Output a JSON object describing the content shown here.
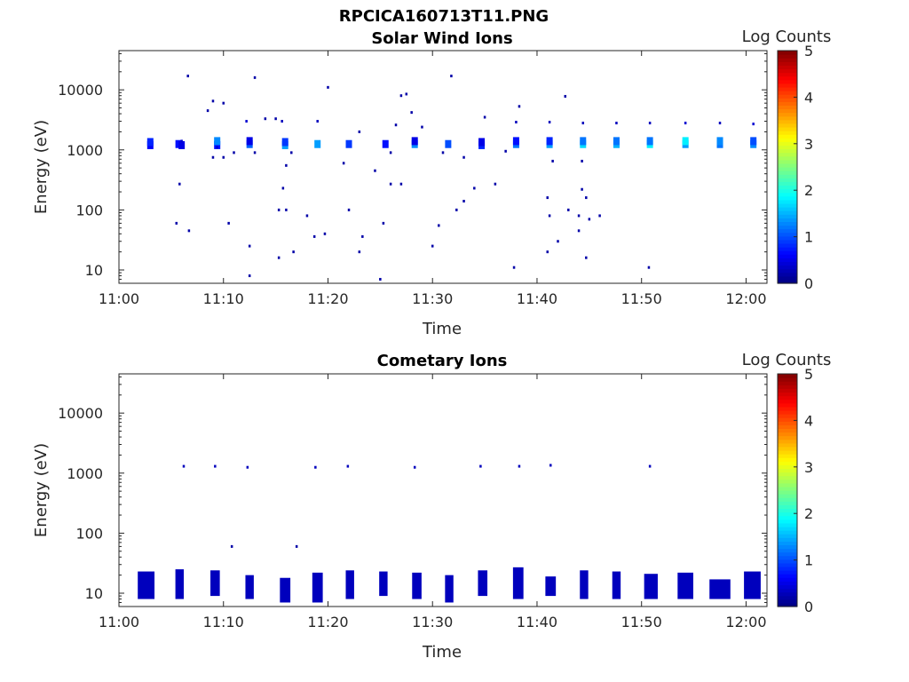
{
  "figure_title": "RPCICA160713T11.PNG",
  "chart_data": [
    {
      "type": "heatmap",
      "title": "Solar Wind Ions",
      "xlabel": "Time",
      "ylabel": "Energy (eV)",
      "yscale": "log",
      "ylim": [
        6,
        45000
      ],
      "xlim": [
        "11:00",
        "12:02"
      ],
      "x_ticks": [
        "11:00",
        "11:10",
        "11:20",
        "11:30",
        "11:40",
        "11:50",
        "12:00"
      ],
      "y_ticks": [
        "10",
        "100",
        "1000",
        "10000"
      ],
      "colorbar": {
        "label": "Log Counts",
        "range": [
          0,
          5
        ],
        "ticks": [
          "0",
          "1",
          "2",
          "3",
          "4",
          "5"
        ],
        "colormap": "jet"
      },
      "points": [
        {
          "t": "11:03",
          "e": 1200,
          "v": 0.6
        },
        {
          "t": "11:03",
          "e": 1350,
          "v": 0.8
        },
        {
          "t": "11:05.7",
          "e": 1250,
          "v": 0.7
        },
        {
          "t": "11:06",
          "e": 1200,
          "v": 0.5
        },
        {
          "t": "11:06",
          "e": 1400,
          "v": 0.4
        },
        {
          "t": "11:09.4",
          "e": 1200,
          "v": 0.7
        },
        {
          "t": "11:09.4",
          "e": 1400,
          "v": 1.3
        },
        {
          "t": "11:09.4",
          "e": 1100,
          "v": 0.4
        },
        {
          "t": "11:12.5",
          "e": 1250,
          "v": 1.1
        },
        {
          "t": "11:12.5",
          "e": 1400,
          "v": 0.5
        },
        {
          "t": "11:12.2",
          "e": 3000,
          "v": 0.4
        },
        {
          "t": "11:15.9",
          "e": 1200,
          "v": 1.4
        },
        {
          "t": "11:15.9",
          "e": 1350,
          "v": 0.9
        },
        {
          "t": "11:15.6",
          "e": 3000,
          "v": 0.3
        },
        {
          "t": "11:19",
          "e": 1250,
          "v": 1.4
        },
        {
          "t": "11:19",
          "e": 3000,
          "v": 0.3
        },
        {
          "t": "11:22",
          "e": 1250,
          "v": 0.9
        },
        {
          "t": "11:25.5",
          "e": 1250,
          "v": 0.7
        },
        {
          "t": "11:28.3",
          "e": 1250,
          "v": 1.3
        },
        {
          "t": "11:28.3",
          "e": 1400,
          "v": 0.5
        },
        {
          "t": "11:31.5",
          "e": 1250,
          "v": 1.0
        },
        {
          "t": "11:34.7",
          "e": 1200,
          "v": 0.8
        },
        {
          "t": "11:34.7",
          "e": 1350,
          "v": 0.5
        },
        {
          "t": "11:38",
          "e": 1250,
          "v": 1.2
        },
        {
          "t": "11:38",
          "e": 1400,
          "v": 0.7
        },
        {
          "t": "11:38",
          "e": 2900,
          "v": 0.3
        },
        {
          "t": "11:41.2",
          "e": 1250,
          "v": 1.4
        },
        {
          "t": "11:41.2",
          "e": 1400,
          "v": 0.8
        },
        {
          "t": "11:41.2",
          "e": 2900,
          "v": 0.3
        },
        {
          "t": "11:44.4",
          "e": 1250,
          "v": 1.7
        },
        {
          "t": "11:44.4",
          "e": 1400,
          "v": 1.2
        },
        {
          "t": "11:44.4",
          "e": 2800,
          "v": 0.3
        },
        {
          "t": "11:47.6",
          "e": 1250,
          "v": 1.5
        },
        {
          "t": "11:47.6",
          "e": 1400,
          "v": 1.2
        },
        {
          "t": "11:47.6",
          "e": 2800,
          "v": 0.3
        },
        {
          "t": "11:50.8",
          "e": 1250,
          "v": 1.8
        },
        {
          "t": "11:50.8",
          "e": 1400,
          "v": 1.2
        },
        {
          "t": "11:50.8",
          "e": 2800,
          "v": 0.3
        },
        {
          "t": "11:54.2",
          "e": 1250,
          "v": 1.4
        },
        {
          "t": "11:54.2",
          "e": 1400,
          "v": 1.8
        },
        {
          "t": "11:54.2",
          "e": 2800,
          "v": 0.4
        },
        {
          "t": "11:57.5",
          "e": 1250,
          "v": 1.2
        },
        {
          "t": "11:57.5",
          "e": 1400,
          "v": 1.3
        },
        {
          "t": "11:57.5",
          "e": 2800,
          "v": 0.3
        },
        {
          "t": "12:00.7",
          "e": 1250,
          "v": 1.3
        },
        {
          "t": "12:00.7",
          "e": 1400,
          "v": 1.0
        },
        {
          "t": "12:00.7",
          "e": 2700,
          "v": 0.4
        },
        {
          "t": "11:12.5",
          "e": 8,
          "v": 0.2
        },
        {
          "t": "11:12.5",
          "e": 25,
          "v": 0.2
        },
        {
          "t": "11:15.3",
          "e": 16,
          "v": 0.2
        },
        {
          "t": "11:16.7",
          "e": 20,
          "v": 0.2
        },
        {
          "t": "11:18.7",
          "e": 36,
          "v": 0.2
        },
        {
          "t": "11:23",
          "e": 20,
          "v": 0.2
        },
        {
          "t": "11:23.3",
          "e": 36,
          "v": 0.2
        },
        {
          "t": "11:25",
          "e": 7,
          "v": 0.2
        },
        {
          "t": "11:30",
          "e": 25,
          "v": 0.2
        },
        {
          "t": "11:37.8",
          "e": 11,
          "v": 0.2
        },
        {
          "t": "11:41",
          "e": 20,
          "v": 0.2
        },
        {
          "t": "11:44.7",
          "e": 16,
          "v": 0.2
        },
        {
          "t": "11:50.7",
          "e": 11,
          "v": 0.2
        },
        {
          "t": "11:06.6",
          "e": 17000,
          "v": 0.2
        },
        {
          "t": "11:13",
          "e": 16000,
          "v": 0.2
        },
        {
          "t": "11:20",
          "e": 11000,
          "v": 0.2
        },
        {
          "t": "11:31.8",
          "e": 17000,
          "v": 0.2
        },
        {
          "t": "11:27",
          "e": 8000,
          "v": 0.2
        },
        {
          "t": "11:27.5",
          "e": 8500,
          "v": 0.2
        },
        {
          "t": "11:09",
          "e": 6500,
          "v": 0.2
        },
        {
          "t": "11:10",
          "e": 6000,
          "v": 0.2
        },
        {
          "t": "11:08.5",
          "e": 4500,
          "v": 0.2
        },
        {
          "t": "11:42.7",
          "e": 7800,
          "v": 0.2
        },
        {
          "t": "11:38.3",
          "e": 5300,
          "v": 0.2
        },
        {
          "t": "11:28",
          "e": 4200,
          "v": 0.2
        },
        {
          "t": "11:14",
          "e": 3300,
          "v": 0.2
        },
        {
          "t": "11:15",
          "e": 3300,
          "v": 0.2
        },
        {
          "t": "11:26.5",
          "e": 2600,
          "v": 0.2
        },
        {
          "t": "11:29",
          "e": 2400,
          "v": 0.2
        },
        {
          "t": "11:35",
          "e": 3500,
          "v": 0.2
        },
        {
          "t": "11:23",
          "e": 2000,
          "v": 0.2
        },
        {
          "t": "11:13",
          "e": 900,
          "v": 0.2
        },
        {
          "t": "11:11",
          "e": 900,
          "v": 0.2
        },
        {
          "t": "11:10",
          "e": 750,
          "v": 0.2
        },
        {
          "t": "11:09",
          "e": 750,
          "v": 0.2
        },
        {
          "t": "11:16.5",
          "e": 900,
          "v": 0.2
        },
        {
          "t": "11:21.5",
          "e": 600,
          "v": 0.2
        },
        {
          "t": "11:26",
          "e": 900,
          "v": 0.2
        },
        {
          "t": "11:31",
          "e": 900,
          "v": 0.2
        },
        {
          "t": "11:33",
          "e": 750,
          "v": 0.2
        },
        {
          "t": "11:37",
          "e": 950,
          "v": 0.2
        },
        {
          "t": "11:41.5",
          "e": 650,
          "v": 0.2
        },
        {
          "t": "11:44.3",
          "e": 650,
          "v": 0.2
        },
        {
          "t": "11:16",
          "e": 550,
          "v": 0.2
        },
        {
          "t": "11:24.5",
          "e": 450,
          "v": 0.2
        },
        {
          "t": "11:26",
          "e": 270,
          "v": 0.2
        },
        {
          "t": "11:27",
          "e": 270,
          "v": 0.2
        },
        {
          "t": "11:05.8",
          "e": 270,
          "v": 0.2
        },
        {
          "t": "11:15.7",
          "e": 230,
          "v": 0.2
        },
        {
          "t": "11:36",
          "e": 270,
          "v": 0.2
        },
        {
          "t": "11:34",
          "e": 230,
          "v": 0.2
        },
        {
          "t": "11:41",
          "e": 160,
          "v": 0.2
        },
        {
          "t": "11:44.3",
          "e": 220,
          "v": 0.2
        },
        {
          "t": "11:44.7",
          "e": 160,
          "v": 0.2
        },
        {
          "t": "11:15.3",
          "e": 100,
          "v": 0.2
        },
        {
          "t": "11:16",
          "e": 100,
          "v": 0.2
        },
        {
          "t": "11:22",
          "e": 100,
          "v": 0.2
        },
        {
          "t": "11:32.3",
          "e": 100,
          "v": 0.2
        },
        {
          "t": "11:33",
          "e": 140,
          "v": 0.2
        },
        {
          "t": "11:41.2",
          "e": 80,
          "v": 0.2
        },
        {
          "t": "11:43",
          "e": 100,
          "v": 0.2
        },
        {
          "t": "11:44",
          "e": 80,
          "v": 0.2
        },
        {
          "t": "11:45",
          "e": 70,
          "v": 0.2
        },
        {
          "t": "11:46",
          "e": 80,
          "v": 0.2
        },
        {
          "t": "11:18",
          "e": 80,
          "v": 0.2
        },
        {
          "t": "11:05.5",
          "e": 60,
          "v": 0.2
        },
        {
          "t": "11:06.7",
          "e": 45,
          "v": 0.2
        },
        {
          "t": "11:10.5",
          "e": 60,
          "v": 0.2
        },
        {
          "t": "11:25.3",
          "e": 60,
          "v": 0.2
        },
        {
          "t": "11:30.6",
          "e": 55,
          "v": 0.2
        },
        {
          "t": "11:44",
          "e": 45,
          "v": 0.2
        },
        {
          "t": "11:42",
          "e": 30,
          "v": 0.2
        },
        {
          "t": "11:19.7",
          "e": 40,
          "v": 0.2
        }
      ]
    },
    {
      "type": "heatmap",
      "title": "Cometary Ions",
      "xlabel": "Time",
      "ylabel": "Energy (eV)",
      "yscale": "log",
      "ylim": [
        6,
        45000
      ],
      "xlim": [
        "11:00",
        "12:02"
      ],
      "x_ticks": [
        "11:00",
        "11:10",
        "11:20",
        "11:30",
        "11:40",
        "11:50",
        "12:00"
      ],
      "y_ticks": [
        "10",
        "100",
        "1000",
        "10000"
      ],
      "colorbar": {
        "label": "Log Counts",
        "range": [
          0,
          5
        ],
        "ticks": [
          "0",
          "1",
          "2",
          "3",
          "4",
          "5"
        ],
        "colormap": "jet"
      },
      "points": [
        {
          "t": "11:06.2",
          "e": 1300,
          "v": 0.3
        },
        {
          "t": "11:09.2",
          "e": 1300,
          "v": 0.3
        },
        {
          "t": "11:12.3",
          "e": 1250,
          "v": 0.3
        },
        {
          "t": "11:18.8",
          "e": 1250,
          "v": 0.3
        },
        {
          "t": "11:21.9",
          "e": 1300,
          "v": 0.3
        },
        {
          "t": "11:28.3",
          "e": 1250,
          "v": 0.3
        },
        {
          "t": "11:34.6",
          "e": 1300,
          "v": 0.3
        },
        {
          "t": "11:38.3",
          "e": 1300,
          "v": 0.3
        },
        {
          "t": "11:41.3",
          "e": 1350,
          "v": 0.3
        },
        {
          "t": "11:50.8",
          "e": 1300,
          "v": 0.3
        },
        {
          "t": "11:10.8",
          "e": 60,
          "v": 0.2
        },
        {
          "t": "11:17",
          "e": 60,
          "v": 0.2
        }
      ],
      "low_energy_bursts": [
        {
          "t": "11:02.6",
          "w": 1.6,
          "e": [
            8,
            23
          ],
          "v": 0.3
        },
        {
          "t": "11:05.8",
          "w": 0.8,
          "e": [
            8,
            25
          ],
          "v": 0.3
        },
        {
          "t": "11:09.2",
          "w": 0.9,
          "e": [
            9,
            24
          ],
          "v": 0.3
        },
        {
          "t": "11:12.5",
          "w": 0.8,
          "e": [
            8,
            20
          ],
          "v": 0.3
        },
        {
          "t": "11:15.9",
          "w": 1.0,
          "e": [
            7,
            18
          ],
          "v": 0.3
        },
        {
          "t": "11:19.0",
          "w": 1.0,
          "e": [
            7,
            22
          ],
          "v": 0.3
        },
        {
          "t": "11:22.1",
          "w": 0.8,
          "e": [
            8,
            24
          ],
          "v": 0.3
        },
        {
          "t": "11:25.3",
          "w": 0.8,
          "e": [
            9,
            23
          ],
          "v": 0.3
        },
        {
          "t": "11:28.5",
          "w": 0.9,
          "e": [
            8,
            22
          ],
          "v": 0.3
        },
        {
          "t": "11:31.6",
          "w": 0.8,
          "e": [
            7,
            20
          ],
          "v": 0.3
        },
        {
          "t": "11:34.8",
          "w": 0.9,
          "e": [
            9,
            24
          ],
          "v": 0.3
        },
        {
          "t": "11:38.2",
          "w": 1.0,
          "e": [
            8,
            27
          ],
          "v": 0.3
        },
        {
          "t": "11:41.3",
          "w": 1.0,
          "e": [
            9,
            19
          ],
          "v": 0.3
        },
        {
          "t": "11:44.5",
          "w": 0.8,
          "e": [
            8,
            24
          ],
          "v": 0.3
        },
        {
          "t": "11:47.6",
          "w": 0.8,
          "e": [
            8,
            23
          ],
          "v": 0.3
        },
        {
          "t": "11:50.9",
          "w": 1.3,
          "e": [
            8,
            21
          ],
          "v": 0.3
        },
        {
          "t": "11:54.2",
          "w": 1.5,
          "e": [
            8,
            22
          ],
          "v": 0.3
        },
        {
          "t": "11:57.5",
          "w": 2.0,
          "e": [
            8,
            17
          ],
          "v": 0.3
        },
        {
          "t": "12:00.6",
          "w": 1.6,
          "e": [
            8,
            23
          ],
          "v": 0.3
        }
      ]
    }
  ]
}
